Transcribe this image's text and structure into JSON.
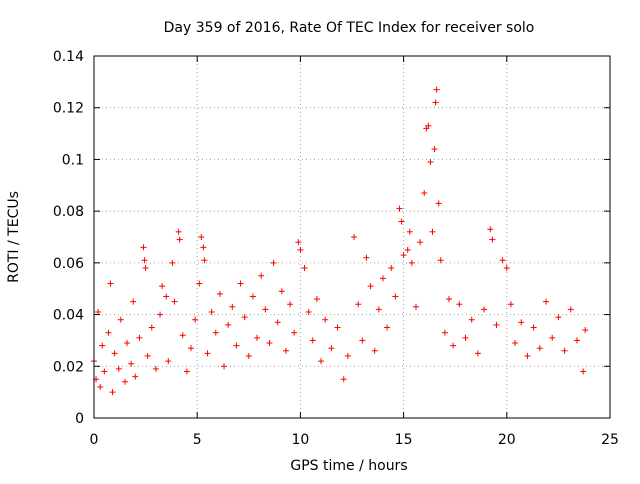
{
  "chart_data": {
    "type": "scatter",
    "title": "Day 359 of 2016, Rate Of TEC Index for receiver solo",
    "xlabel": "GPS time / hours",
    "ylabel": "ROTI / TECUs",
    "xlim": [
      0,
      25
    ],
    "ylim": [
      0,
      0.14
    ],
    "x_ticks": [
      0,
      5,
      10,
      15,
      20,
      25
    ],
    "x_tick_labels": [
      "0",
      "5",
      "10",
      "15",
      "20",
      "25"
    ],
    "y_ticks": [
      0,
      0.02,
      0.04,
      0.06,
      0.08,
      0.1,
      0.12,
      0.14
    ],
    "y_tick_labels": [
      "0",
      "0.02",
      "0.04",
      "0.06",
      "0.08",
      "0.1",
      "0.12",
      "0.14"
    ],
    "grid": true,
    "legend": "none",
    "marker": "+",
    "color": "#ff0000",
    "series": [
      {
        "name": "ROTI",
        "points": [
          [
            0.0,
            0.022
          ],
          [
            0.1,
            0.015
          ],
          [
            0.2,
            0.041
          ],
          [
            0.3,
            0.012
          ],
          [
            0.4,
            0.028
          ],
          [
            0.5,
            0.018
          ],
          [
            0.7,
            0.033
          ],
          [
            0.8,
            0.052
          ],
          [
            0.9,
            0.01
          ],
          [
            1.0,
            0.025
          ],
          [
            1.2,
            0.019
          ],
          [
            1.3,
            0.038
          ],
          [
            1.5,
            0.014
          ],
          [
            1.6,
            0.029
          ],
          [
            1.8,
            0.021
          ],
          [
            1.9,
            0.045
          ],
          [
            2.0,
            0.016
          ],
          [
            2.2,
            0.031
          ],
          [
            2.4,
            0.066
          ],
          [
            2.45,
            0.061
          ],
          [
            2.5,
            0.058
          ],
          [
            2.6,
            0.024
          ],
          [
            2.8,
            0.035
          ],
          [
            3.0,
            0.019
          ],
          [
            3.2,
            0.04
          ],
          [
            3.3,
            0.051
          ],
          [
            3.5,
            0.047
          ],
          [
            3.6,
            0.022
          ],
          [
            3.8,
            0.06
          ],
          [
            3.9,
            0.045
          ],
          [
            4.1,
            0.072
          ],
          [
            4.15,
            0.069
          ],
          [
            4.3,
            0.032
          ],
          [
            4.5,
            0.018
          ],
          [
            4.7,
            0.027
          ],
          [
            4.9,
            0.038
          ],
          [
            5.1,
            0.052
          ],
          [
            5.2,
            0.07
          ],
          [
            5.3,
            0.066
          ],
          [
            5.35,
            0.061
          ],
          [
            5.5,
            0.025
          ],
          [
            5.7,
            0.041
          ],
          [
            5.9,
            0.033
          ],
          [
            6.1,
            0.048
          ],
          [
            6.3,
            0.02
          ],
          [
            6.5,
            0.036
          ],
          [
            6.7,
            0.043
          ],
          [
            6.9,
            0.028
          ],
          [
            7.1,
            0.052
          ],
          [
            7.3,
            0.039
          ],
          [
            7.5,
            0.024
          ],
          [
            7.7,
            0.047
          ],
          [
            7.9,
            0.031
          ],
          [
            8.1,
            0.055
          ],
          [
            8.3,
            0.042
          ],
          [
            8.5,
            0.029
          ],
          [
            8.7,
            0.06
          ],
          [
            8.9,
            0.037
          ],
          [
            9.1,
            0.049
          ],
          [
            9.3,
            0.026
          ],
          [
            9.5,
            0.044
          ],
          [
            9.7,
            0.033
          ],
          [
            9.9,
            0.068
          ],
          [
            10.0,
            0.065
          ],
          [
            10.2,
            0.058
          ],
          [
            10.4,
            0.041
          ],
          [
            10.6,
            0.03
          ],
          [
            10.8,
            0.046
          ],
          [
            11.0,
            0.022
          ],
          [
            11.2,
            0.038
          ],
          [
            11.5,
            0.027
          ],
          [
            11.8,
            0.035
          ],
          [
            12.1,
            0.015
          ],
          [
            12.3,
            0.024
          ],
          [
            12.6,
            0.07
          ],
          [
            12.8,
            0.044
          ],
          [
            13.0,
            0.03
          ],
          [
            13.2,
            0.062
          ],
          [
            13.4,
            0.051
          ],
          [
            13.6,
            0.026
          ],
          [
            13.8,
            0.042
          ],
          [
            14.0,
            0.054
          ],
          [
            14.2,
            0.035
          ],
          [
            14.4,
            0.058
          ],
          [
            14.6,
            0.047
          ],
          [
            14.8,
            0.081
          ],
          [
            14.9,
            0.076
          ],
          [
            15.0,
            0.063
          ],
          [
            15.2,
            0.065
          ],
          [
            15.3,
            0.072
          ],
          [
            15.4,
            0.06
          ],
          [
            15.6,
            0.043
          ],
          [
            15.8,
            0.068
          ],
          [
            16.0,
            0.087
          ],
          [
            16.1,
            0.112
          ],
          [
            16.2,
            0.113
          ],
          [
            16.3,
            0.099
          ],
          [
            16.4,
            0.072
          ],
          [
            16.5,
            0.104
          ],
          [
            16.55,
            0.122
          ],
          [
            16.6,
            0.127
          ],
          [
            16.7,
            0.083
          ],
          [
            16.8,
            0.061
          ],
          [
            17.0,
            0.033
          ],
          [
            17.2,
            0.046
          ],
          [
            17.4,
            0.028
          ],
          [
            17.7,
            0.044
          ],
          [
            18.0,
            0.031
          ],
          [
            18.3,
            0.038
          ],
          [
            18.6,
            0.025
          ],
          [
            18.9,
            0.042
          ],
          [
            19.2,
            0.073
          ],
          [
            19.3,
            0.069
          ],
          [
            19.5,
            0.036
          ],
          [
            19.8,
            0.061
          ],
          [
            20.0,
            0.058
          ],
          [
            20.2,
            0.044
          ],
          [
            20.4,
            0.029
          ],
          [
            20.7,
            0.037
          ],
          [
            21.0,
            0.024
          ],
          [
            21.3,
            0.035
          ],
          [
            21.6,
            0.027
          ],
          [
            21.9,
            0.045
          ],
          [
            22.2,
            0.031
          ],
          [
            22.5,
            0.039
          ],
          [
            22.8,
            0.026
          ],
          [
            23.1,
            0.042
          ],
          [
            23.4,
            0.03
          ],
          [
            23.7,
            0.018
          ],
          [
            23.8,
            0.034
          ]
        ]
      }
    ]
  }
}
